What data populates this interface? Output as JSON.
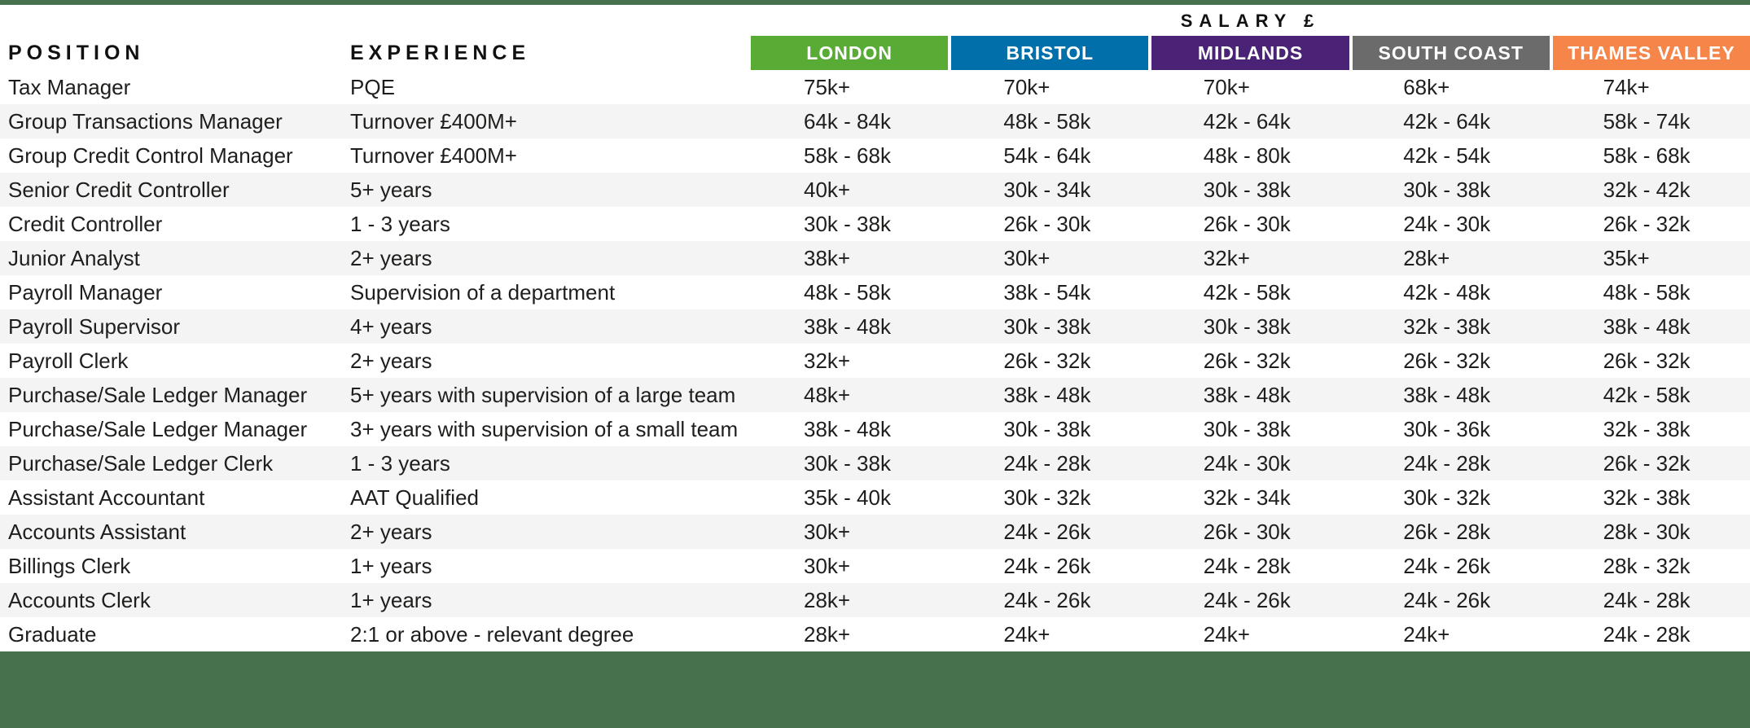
{
  "title": "SALARY £",
  "columns": {
    "position_label": "POSITION",
    "experience_label": "EXPERIENCE",
    "regions": [
      {
        "label": "LONDON",
        "color": "#58ab35"
      },
      {
        "label": "BRISTOL",
        "color": "#006faa"
      },
      {
        "label": "MIDLANDS",
        "color": "#4a2377"
      },
      {
        "label": "SOUTH COAST",
        "color": "#6b6b6b"
      },
      {
        "label": "THAMES VALLEY",
        "color": "#f6854a"
      }
    ]
  },
  "rows": [
    {
      "position": "Tax Manager",
      "experience": "PQE",
      "salaries": [
        "75k+",
        "70k+",
        "70k+",
        "68k+",
        "74k+"
      ]
    },
    {
      "position": "Group Transactions Manager",
      "experience": "Turnover £400M+",
      "salaries": [
        "64k - 84k",
        "48k - 58k",
        "42k - 64k",
        "42k - 64k",
        "58k - 74k"
      ]
    },
    {
      "position": "Group Credit Control Manager",
      "experience": "Turnover £400M+",
      "salaries": [
        "58k - 68k",
        "54k - 64k",
        "48k - 80k",
        "42k - 54k",
        "58k - 68k"
      ]
    },
    {
      "position": "Senior Credit Controller",
      "experience": "5+ years",
      "salaries": [
        "40k+",
        "30k - 34k",
        "30k - 38k",
        "30k - 38k",
        "32k - 42k"
      ]
    },
    {
      "position": "Credit Controller",
      "experience": "1 - 3 years",
      "salaries": [
        "30k - 38k",
        "26k - 30k",
        "26k - 30k",
        "24k - 30k",
        "26k - 32k"
      ]
    },
    {
      "position": "Junior Analyst",
      "experience": "2+ years",
      "salaries": [
        "38k+",
        "30k+",
        "32k+",
        "28k+",
        "35k+"
      ]
    },
    {
      "position": "Payroll Manager",
      "experience": "Supervision of a department",
      "salaries": [
        "48k - 58k",
        "38k - 54k",
        "42k - 58k",
        "42k - 48k",
        "48k - 58k"
      ]
    },
    {
      "position": "Payroll Supervisor",
      "experience": "4+ years",
      "salaries": [
        "38k - 48k",
        "30k - 38k",
        "30k - 38k",
        "32k - 38k",
        "38k - 48k"
      ]
    },
    {
      "position": "Payroll Clerk",
      "experience": "2+ years",
      "salaries": [
        "32k+",
        "26k - 32k",
        "26k - 32k",
        "26k - 32k",
        "26k - 32k"
      ]
    },
    {
      "position": "Purchase/Sale Ledger Manager",
      "experience": "5+ years with supervision of a large team",
      "salaries": [
        "48k+",
        "38k - 48k",
        "38k - 48k",
        "38k - 48k",
        "42k - 58k"
      ]
    },
    {
      "position": "Purchase/Sale Ledger Manager",
      "experience": "3+ years with supervision of a small team",
      "salaries": [
        "38k - 48k",
        "30k - 38k",
        "30k - 38k",
        "30k - 36k",
        "32k - 38k"
      ]
    },
    {
      "position": "Purchase/Sale Ledger Clerk",
      "experience": "1 - 3 years",
      "salaries": [
        "30k - 38k",
        "24k - 28k",
        "24k - 30k",
        "24k - 28k",
        "26k - 32k"
      ]
    },
    {
      "position": "Assistant Accountant",
      "experience": "AAT Qualified",
      "salaries": [
        "35k - 40k",
        "30k - 32k",
        "32k - 34k",
        "30k - 32k",
        "32k - 38k"
      ]
    },
    {
      "position": "Accounts Assistant",
      "experience": "2+ years",
      "salaries": [
        "30k+",
        "24k - 26k",
        "26k - 30k",
        "26k - 28k",
        "28k - 30k"
      ]
    },
    {
      "position": "Billings Clerk",
      "experience": "1+ years",
      "salaries": [
        "30k+",
        "24k - 26k",
        "24k - 28k",
        "24k - 26k",
        "28k - 32k"
      ]
    },
    {
      "position": "Accounts Clerk",
      "experience": "1+ years",
      "salaries": [
        "28k+",
        "24k - 26k",
        "24k - 26k",
        "24k - 26k",
        "24k - 28k"
      ]
    },
    {
      "position": "Graduate",
      "experience": "2:1 or above - relevant degree",
      "salaries": [
        "28k+",
        "24k+",
        "24k+",
        "24k+",
        "24k - 28k"
      ]
    }
  ],
  "colors": {
    "accent_green": "#47704c",
    "row_band": "#f4f4f4",
    "text": "#1e1e1c"
  }
}
